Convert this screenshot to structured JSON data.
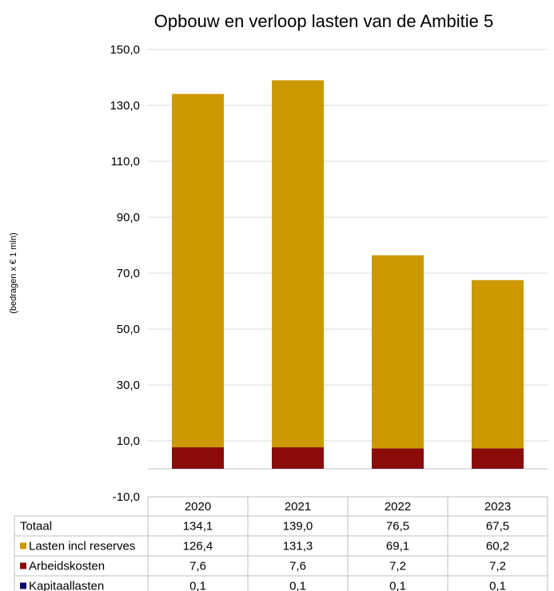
{
  "chart_data": {
    "type": "bar",
    "stacked": true,
    "title": "Opbouw en verloop lasten van de Ambitie 5",
    "ylabel": "(bedragen x € 1 mln)",
    "xlabel": "",
    "categories": [
      "2020",
      "2021",
      "2022",
      "2023"
    ],
    "ylim": [
      -10,
      150
    ],
    "yticks": [
      150,
      130,
      110,
      90,
      70,
      50,
      30,
      10,
      -10
    ],
    "ytick_labels": [
      "150,0",
      "130,0",
      "110,0",
      "90,0",
      "70,0",
      "50,0",
      "30,0",
      "10,0",
      "-10,0"
    ],
    "grid": true,
    "legend_placement": "in data table",
    "series": [
      {
        "name": "Kapitaallasten",
        "color": "#0b0b6b",
        "values": [
          0.1,
          0.1,
          0.1,
          0.1
        ],
        "labels": [
          "0,1",
          "0,1",
          "0,1",
          "0,1"
        ]
      },
      {
        "name": "Arbeidskosten",
        "color": "#8b0a0a",
        "values": [
          7.6,
          7.6,
          7.2,
          7.2
        ],
        "labels": [
          "7,6",
          "7,6",
          "7,2",
          "7,2"
        ]
      },
      {
        "name": "Lasten incl reserves",
        "color": "#cc9900",
        "values": [
          126.4,
          131.3,
          69.1,
          60.2
        ],
        "labels": [
          "126,4",
          "131,3",
          "69,1",
          "60,2"
        ]
      }
    ],
    "table_rows": [
      {
        "label": "Totaal",
        "color": "",
        "values": [
          "134,1",
          "139,0",
          "76,5",
          "67,5"
        ]
      },
      {
        "label": "Lasten incl reserves",
        "color": "#cc9900",
        "values": [
          "126,4",
          "131,3",
          "69,1",
          "60,2"
        ]
      },
      {
        "label": "Arbeidskosten",
        "color": "#8b0a0a",
        "values": [
          "7,6",
          "7,6",
          "7,2",
          "7,2"
        ]
      },
      {
        "label": "Kapitaallasten",
        "color": "#0b0b6b",
        "values": [
          "0,1",
          "0,1",
          "0,1",
          "0,1"
        ]
      }
    ]
  }
}
